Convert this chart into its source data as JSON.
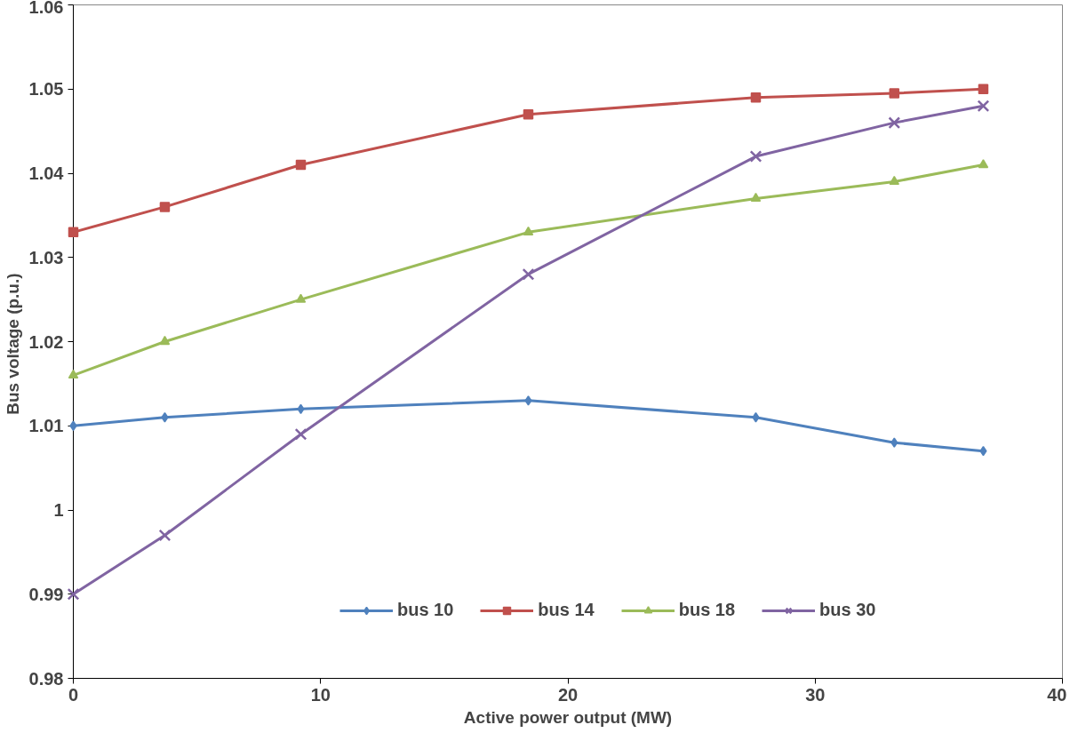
{
  "chart_data": {
    "type": "line",
    "xlabel": "Active power output (MW)",
    "ylabel": "Bus  voltage (p.u.)",
    "x": [
      0,
      3.7,
      9.2,
      18.4,
      27.6,
      33.2,
      36.8
    ],
    "xlim": [
      0,
      40
    ],
    "xticks": [
      0,
      10,
      20,
      30,
      40
    ],
    "ylim": [
      0.98,
      1.06
    ],
    "yticks": [
      0.98,
      0.99,
      1,
      1.01,
      1.02,
      1.03,
      1.04,
      1.05,
      1.06
    ],
    "grid": false,
    "legend": "bottom",
    "line_style": "solid",
    "series": [
      {
        "name": "bus 10",
        "color": "#4f81bd",
        "marker": "diamond",
        "values": [
          1.01,
          1.011,
          1.012,
          1.013,
          1.011,
          1.008,
          1.007
        ]
      },
      {
        "name": "bus 14",
        "color": "#c0504d",
        "marker": "square",
        "values": [
          1.033,
          1.036,
          1.041,
          1.047,
          1.049,
          1.0495,
          1.05
        ]
      },
      {
        "name": "bus 18",
        "color": "#9bbb59",
        "marker": "triangle",
        "values": [
          1.016,
          1.02,
          1.025,
          1.033,
          1.037,
          1.039,
          1.041
        ]
      },
      {
        "name": "bus 30",
        "color": "#8064a2",
        "marker": "cross",
        "values": [
          0.99,
          0.997,
          1.009,
          1.028,
          1.042,
          1.046,
          1.048
        ]
      }
    ]
  }
}
